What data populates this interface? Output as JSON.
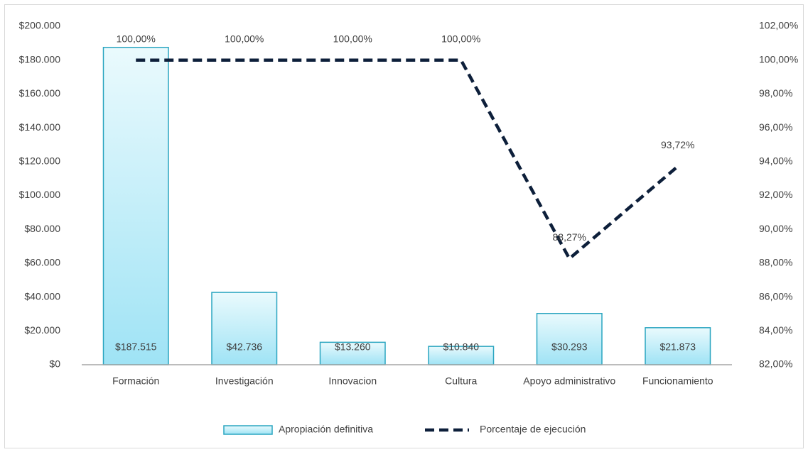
{
  "chart_data": {
    "type": "bar",
    "categories": [
      "Formación",
      "Investigación",
      "Innovacion",
      "Cultura",
      "Apoyo administrativo",
      "Funcionamiento"
    ],
    "series": [
      {
        "name": "Apropiación definitiva",
        "type": "bar",
        "color": "#2aa5c0",
        "values": [
          187515,
          42736,
          13260,
          10840,
          30293,
          21873
        ],
        "value_labels": [
          "$187.515",
          "$42.736",
          "$13.260",
          "$10.840",
          "$30.293",
          "$21.873"
        ]
      },
      {
        "name": "Porcentaje de ejecución",
        "type": "line",
        "axis": "y2",
        "color": "#0d1f3a",
        "values": [
          100,
          100,
          100,
          100,
          88.27,
          93.72
        ],
        "value_labels": [
          "100,00%",
          "100,00%",
          "100,00%",
          "100,00%",
          "88,27%",
          "93,72%"
        ]
      }
    ],
    "ylim": [
      0,
      200000
    ],
    "yticks": [
      {
        "value": 0,
        "label": "$0"
      },
      {
        "value": 20000,
        "label": "$20.000"
      },
      {
        "value": 40000,
        "label": "$40.000"
      },
      {
        "value": 60000,
        "label": "$60.000"
      },
      {
        "value": 80000,
        "label": "$80.000"
      },
      {
        "value": 100000,
        "label": "$100.000"
      },
      {
        "value": 120000,
        "label": "$120.000"
      },
      {
        "value": 140000,
        "label": "$140.000"
      },
      {
        "value": 160000,
        "label": "$160.000"
      },
      {
        "value": 180000,
        "label": "$180.000"
      },
      {
        "value": 200000,
        "label": "$200.000"
      }
    ],
    "y2lim": [
      82,
      102
    ],
    "y2ticks": [
      {
        "value": 82,
        "label": "82,00%"
      },
      {
        "value": 84,
        "label": "84,00%"
      },
      {
        "value": 86,
        "label": "86,00%"
      },
      {
        "value": 88,
        "label": "88,00%"
      },
      {
        "value": 90,
        "label": "90,00%"
      },
      {
        "value": 92,
        "label": "92,00%"
      },
      {
        "value": 94,
        "label": "94,00%"
      },
      {
        "value": 96,
        "label": "96,00%"
      },
      {
        "value": 98,
        "label": "98,00%"
      },
      {
        "value": 100,
        "label": "100,00%"
      },
      {
        "value": 102,
        "label": "102,00%"
      }
    ],
    "grid": false,
    "legend": "bottom"
  }
}
